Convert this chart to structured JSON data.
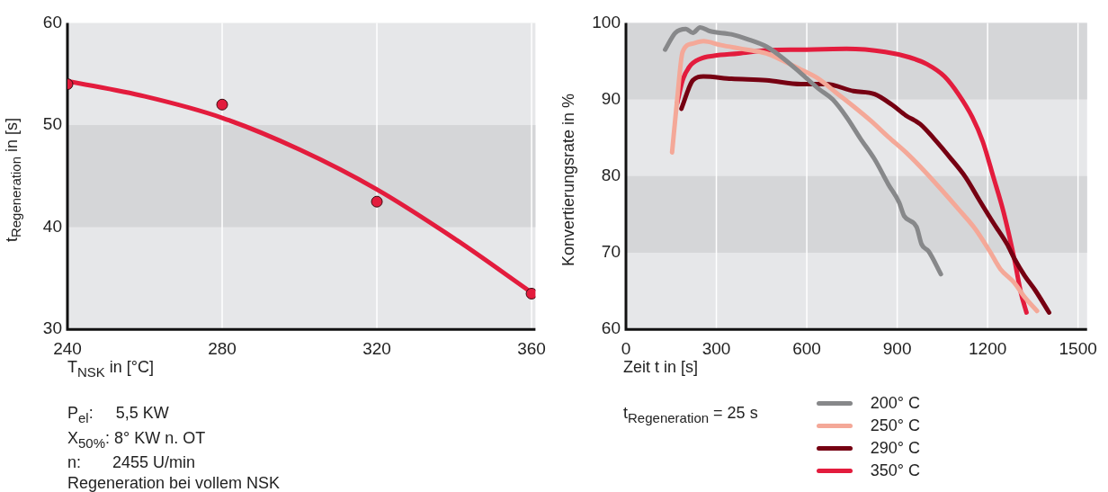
{
  "chart_data": [
    {
      "type": "scatter",
      "xlabel": "T$_{NSK}$ in [°C]",
      "ylabel": "t$_{Regeneration}$ in [s]",
      "xlim": [
        240,
        361
      ],
      "xticks": [
        240,
        280,
        320,
        360
      ],
      "ylim": [
        30,
        60
      ],
      "yticks": [
        30,
        40,
        50,
        60
      ],
      "grid": "x",
      "marker": "circle",
      "bands": [
        {
          "axis": "y",
          "from": 40,
          "to": 50,
          "color": "#d5d6d8"
        }
      ],
      "series": [
        {
          "type": "line",
          "marker": "none",
          "color": "#e31c3d",
          "x": [
            240,
            260,
            280,
            300,
            320,
            340,
            360
          ],
          "values": [
            54.3,
            52.8,
            50.7,
            47.6,
            43.7,
            38.9,
            33.6
          ]
        },
        {
          "color": "#e31c3d",
          "x": [
            240,
            280,
            320,
            360
          ],
          "values": [
            54,
            52,
            42.5,
            33.5
          ]
        }
      ],
      "annotations": [
        "P$_{el}$:     5,5 KW",
        "X$_{50%}$: 8° KW n. OT",
        "n:       2455 U/min",
        "Regeneration bei vollem NSK"
      ]
    },
    {
      "type": "line",
      "xlabel": "Zeit t in [s]",
      "ylabel": "Konvertierungsrate in %",
      "xlim": [
        0,
        1530
      ],
      "xticks": [
        0,
        300,
        600,
        900,
        1200,
        1500
      ],
      "ylim": [
        60,
        100
      ],
      "yticks": [
        60,
        70,
        80,
        90,
        100
      ],
      "grid": "x",
      "legend": "bottom right",
      "bands": [
        {
          "axis": "y",
          "from": 90,
          "to": 100,
          "color": "#d5d6d8"
        },
        {
          "axis": "y",
          "from": 70,
          "to": 80,
          "color": "#d5d6d8"
        }
      ],
      "series": [
        {
          "name": "200° C",
          "color": "#87888a",
          "x": [
            130,
            164,
            199,
            222,
            246,
            280,
            350,
            408,
            466,
            524,
            581,
            639,
            686,
            732,
            778,
            825,
            871,
            906,
            923,
            964,
            981,
            1004,
            1045
          ],
          "values": [
            96.5,
            98.7,
            99.2,
            98.7,
            99.4,
            98.9,
            98.5,
            97.8,
            96.9,
            95.3,
            93.4,
            91.4,
            90,
            87.7,
            84.9,
            82.2,
            78.9,
            76.6,
            74.8,
            73.4,
            71.1,
            70.2,
            67.2
          ]
        },
        {
          "name": "250° C",
          "color": "#f4a898",
          "x": [
            153,
            170,
            188,
            222,
            257,
            315,
            385,
            466,
            524,
            581,
            639,
            697,
            755,
            813,
            871,
            929,
            987,
            1045,
            1103,
            1161,
            1207,
            1242,
            1288,
            1323,
            1364
          ],
          "values": [
            83.1,
            90,
            96.2,
            97.3,
            97.6,
            97.1,
            96.6,
            96,
            95,
            93.9,
            92.7,
            90.9,
            89.1,
            87.2,
            85.1,
            83.1,
            80.8,
            78.3,
            75.7,
            73,
            70.2,
            67.9,
            66.1,
            64.2,
            62.4
          ]
        },
        {
          "name": "290° C",
          "color": "#760012",
          "x": [
            184,
            222,
            257,
            350,
            466,
            581,
            663,
            755,
            825,
            883,
            929,
            976,
            1022,
            1080,
            1126,
            1172,
            1219,
            1265,
            1288,
            1323,
            1358,
            1404
          ],
          "values": [
            88.8,
            92.5,
            93,
            92.7,
            92.5,
            92,
            92,
            91.1,
            90.7,
            89.3,
            87.9,
            86.8,
            84.9,
            82.2,
            79.9,
            76.9,
            73.9,
            71.1,
            69.3,
            67,
            65.1,
            62.2
          ]
        },
        {
          "name": "350° C",
          "color": "#e31c3d",
          "x": [
            170,
            188,
            211,
            246,
            292,
            373,
            466,
            581,
            732,
            860,
            941,
            999,
            1057,
            1103,
            1149,
            1184,
            1219,
            1253,
            1288,
            1311,
            1329
          ],
          "values": [
            89.5,
            92.5,
            94.3,
            95.3,
            95.7,
            96,
            96.4,
            96.5,
            96.6,
            96.2,
            95.5,
            94.6,
            93,
            90.7,
            87.7,
            84.5,
            79.9,
            75.3,
            69.3,
            64.7,
            62.2
          ]
        }
      ],
      "annotations": [
        "t$_{Regeneration}$ = 25 s"
      ]
    }
  ]
}
